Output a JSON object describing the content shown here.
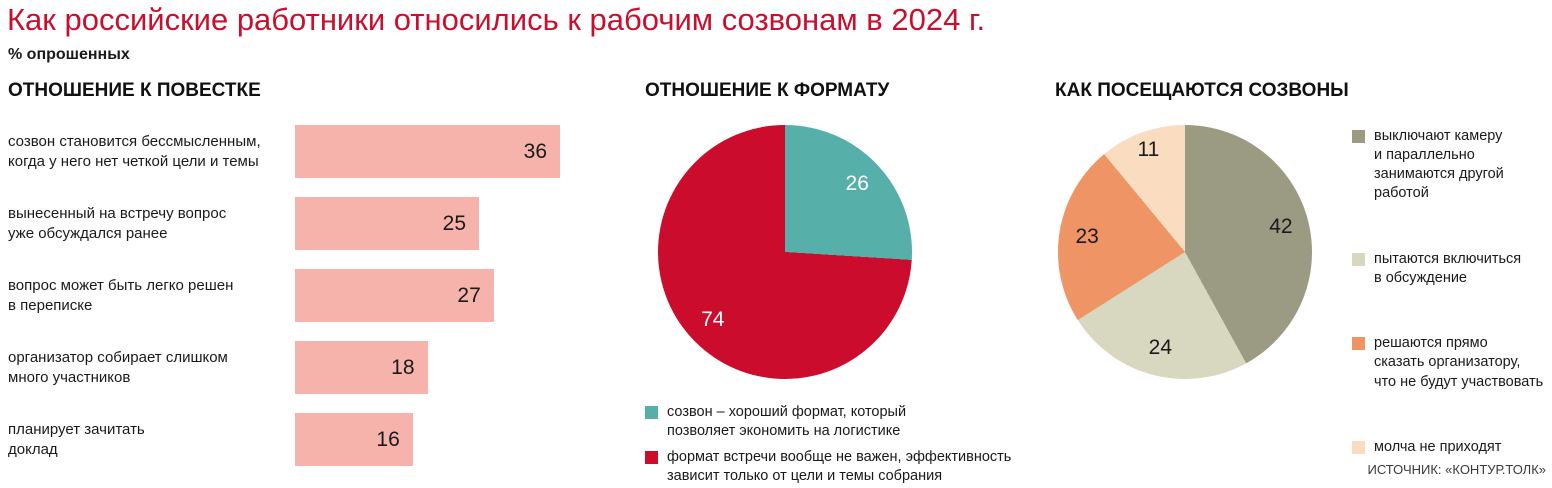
{
  "page": {
    "title": "Как российские работники относились к рабочим созвонам в 2024 г.",
    "subtitle": "% опрошенных",
    "source": "ИСТОЧНИК: «КОНТУР.ТОЛК»"
  },
  "colors": {
    "title_accent": "#c8102e",
    "text": "#1a1a1a",
    "bar": "#f5b3ab",
    "pie_format_teal": "#57afaa",
    "pie_format_red": "#cb0c2c",
    "pie_attendance_olive": "#9b9b84",
    "pie_attendance_sage": "#d8d7bf",
    "pie_attendance_orange": "#ef9465",
    "pie_attendance_peach": "#fadcc0"
  },
  "chart_data": [
    {
      "type": "bar",
      "title": "ОТНОШЕНИЕ К ПОВЕСТКЕ",
      "orientation": "horizontal",
      "bar_color": "#f5b3ab",
      "xlim": [
        0,
        36
      ],
      "categories": [
        "созвон становится бессмысленным,\nкогда у него нет четкой цели и темы",
        "вынесенный на встречу вопрос\nуже обсуждался ранее",
        "вопрос может быть легко решен\nв переписке",
        "организатор собирает слишком\nмного участников",
        "планирует зачитать\nдоклад"
      ],
      "values": [
        36,
        25,
        27,
        18,
        16
      ]
    },
    {
      "type": "pie",
      "title": "ОТНОШЕНИЕ К ФОРМАТУ",
      "start_angle": 0,
      "direction": "clockwise",
      "value_label_color": "#ffffff",
      "legend_position": "bottom",
      "slices": [
        {
          "value": 26,
          "color": "#57afaa",
          "label": "созвон – хороший формат, который\nпозволяет экономить на логистике"
        },
        {
          "value": 74,
          "color": "#cb0c2c",
          "label": "формат встречи вообще не важен, эффективность\nзависит только от цели и темы собрания"
        }
      ]
    },
    {
      "type": "pie",
      "title": "КАК ПОСЕЩАЮТСЯ СОЗВОНЫ",
      "start_angle": 0,
      "direction": "clockwise",
      "value_label_color": "#1a1a1a",
      "legend_position": "right",
      "slices": [
        {
          "value": 42,
          "color": "#9b9b84",
          "label": "выключают камеру\nи параллельно\nзанимаются другой\nработой"
        },
        {
          "value": 24,
          "color": "#d8d7bf",
          "label": "пытаются включиться\nв обсуждение"
        },
        {
          "value": 23,
          "color": "#ef9465",
          "label": "решаются прямо\nсказать организатору,\nчто не будут участвовать"
        },
        {
          "value": 11,
          "color": "#fadcc0",
          "label": "молча не приходят"
        }
      ]
    }
  ]
}
